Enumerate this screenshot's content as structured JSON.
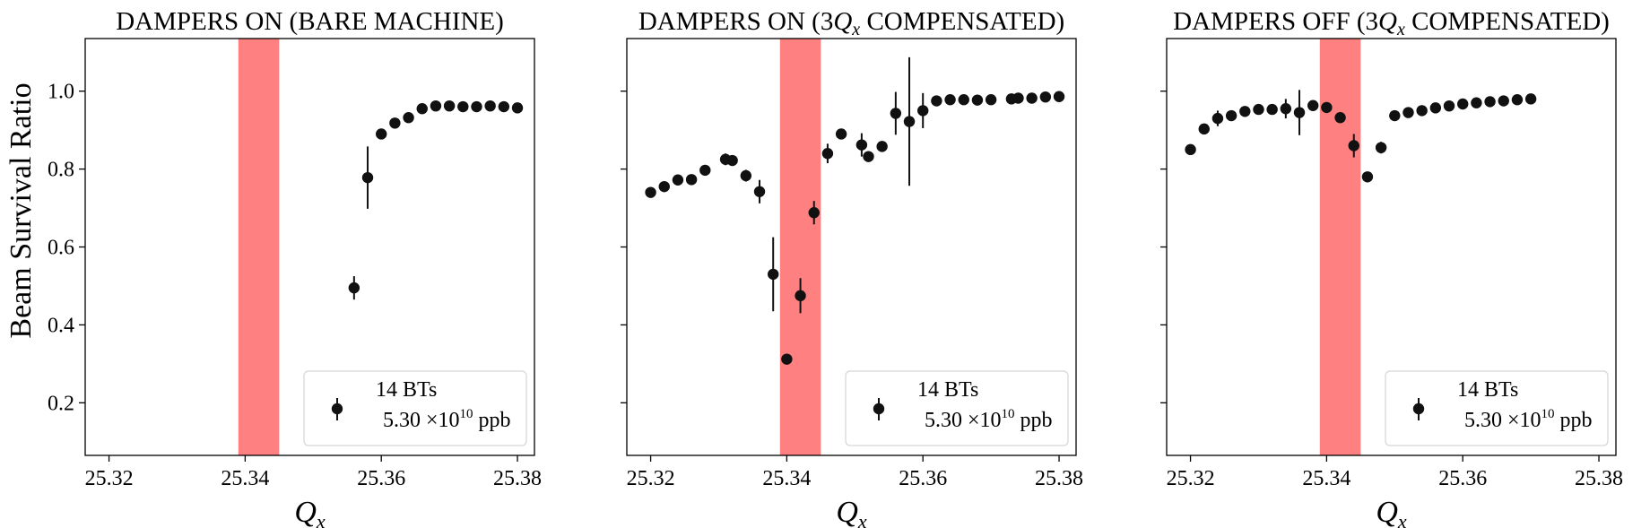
{
  "figure": {
    "ylabel": "Beam Survival Ratio",
    "xlabel_symbol": "Q",
    "xlabel_sub": "x"
  },
  "chart_data": [
    {
      "type": "scatter",
      "title": "DAMPERS ON (BARE MACHINE)",
      "title_parts": [
        {
          "t": "DAMPERS ON (BARE MACHINE)"
        }
      ],
      "xlabel": "Qx",
      "ylabel": "Beam Survival Ratio",
      "xlim": [
        25.3165,
        25.3825
      ],
      "ylim": [
        0.065,
        1.135
      ],
      "xticks": [
        "25.32",
        "25.34",
        "25.36",
        "25.38"
      ],
      "xtick_values": [
        25.32,
        25.34,
        25.36,
        25.38
      ],
      "yticks": [
        "0.2",
        "0.4",
        "0.6",
        "0.8",
        "1.0"
      ],
      "ytick_values": [
        0.2,
        0.4,
        0.6,
        0.8,
        1.0
      ],
      "show_ytick_labels": true,
      "band": {
        "x0": 25.339,
        "x1": 25.345,
        "color": "#ff8080"
      },
      "legend": {
        "line1": "14 BTs",
        "mantissa": "5.30 ×10",
        "exponent": "10",
        "unit": " ppb",
        "location": "lower right"
      },
      "series": [
        {
          "name": "14 BTs 5.30×10^10 ppb",
          "color": "#111111",
          "x": [
            25.356,
            25.358,
            25.36,
            25.362,
            25.364,
            25.366,
            25.368,
            25.37,
            25.372,
            25.374,
            25.376,
            25.378,
            25.38
          ],
          "y": [
            0.495,
            0.778,
            0.89,
            0.918,
            0.932,
            0.955,
            0.962,
            0.962,
            0.96,
            0.96,
            0.962,
            0.96,
            0.957
          ],
          "yerr": [
            0.03,
            0.08,
            0.01,
            0.008,
            0.008,
            0.006,
            0.006,
            0.005,
            0.005,
            0.005,
            0.005,
            0.005,
            0.005
          ]
        }
      ]
    },
    {
      "type": "scatter",
      "title": "DAMPERS ON (3Qx COMPENSATED)",
      "title_parts": [
        {
          "t": "DAMPERS ON (3"
        },
        {
          "t": "Q",
          "i": true
        },
        {
          "t": "x",
          "i": true,
          "sub": true
        },
        {
          "t": " COMPENSATED)"
        }
      ],
      "xlabel": "Qx",
      "ylabel": "",
      "xlim": [
        25.3165,
        25.3825
      ],
      "ylim": [
        0.065,
        1.135
      ],
      "xticks": [
        "25.32",
        "25.34",
        "25.36",
        "25.38"
      ],
      "xtick_values": [
        25.32,
        25.34,
        25.36,
        25.38
      ],
      "yticks": [
        "",
        "",
        "",
        "",
        ""
      ],
      "ytick_values": [
        0.2,
        0.4,
        0.6,
        0.8,
        1.0
      ],
      "show_ytick_labels": false,
      "band": {
        "x0": 25.339,
        "x1": 25.345,
        "color": "#ff8080"
      },
      "legend": {
        "line1": "14 BTs",
        "mantissa": "5.30 ×10",
        "exponent": "10",
        "unit": " ppb",
        "location": "lower right"
      },
      "series": [
        {
          "name": "14 BTs 5.30×10^10 ppb",
          "color": "#111111",
          "x": [
            25.32,
            25.322,
            25.324,
            25.326,
            25.328,
            25.331,
            25.332,
            25.334,
            25.336,
            25.338,
            25.34,
            25.342,
            25.344,
            25.346,
            25.348,
            25.351,
            25.352,
            25.354,
            25.356,
            25.358,
            25.36,
            25.362,
            25.364,
            25.366,
            25.368,
            25.37,
            25.373,
            25.374,
            25.376,
            25.378,
            25.38
          ],
          "y": [
            0.74,
            0.755,
            0.772,
            0.773,
            0.797,
            0.825,
            0.822,
            0.783,
            0.742,
            0.53,
            0.312,
            0.475,
            0.688,
            0.84,
            0.89,
            0.862,
            0.832,
            0.858,
            0.943,
            0.922,
            0.95,
            0.975,
            0.978,
            0.978,
            0.977,
            0.978,
            0.98,
            0.982,
            0.982,
            0.985,
            0.986
          ],
          "yerr": [
            0.005,
            0.006,
            0.006,
            0.006,
            0.01,
            0.015,
            0.012,
            0.015,
            0.03,
            0.095,
            0.008,
            0.045,
            0.03,
            0.025,
            0.008,
            0.03,
            0.008,
            0.008,
            0.055,
            0.165,
            0.045,
            0.008,
            0.005,
            0.005,
            0.005,
            0.005,
            0.005,
            0.005,
            0.005,
            0.005,
            0.005
          ]
        }
      ]
    },
    {
      "type": "scatter",
      "title": "DAMPERS OFF (3Qx COMPENSATED)",
      "title_parts": [
        {
          "t": "DAMPERS OFF (3"
        },
        {
          "t": "Q",
          "i": true
        },
        {
          "t": "x",
          "i": true,
          "sub": true
        },
        {
          "t": " COMPENSATED)"
        }
      ],
      "xlabel": "Qx",
      "ylabel": "",
      "xlim": [
        25.3165,
        25.3825
      ],
      "ylim": [
        0.065,
        1.135
      ],
      "xticks": [
        "25.32",
        "25.34",
        "25.36",
        "25.38"
      ],
      "xtick_values": [
        25.32,
        25.34,
        25.36,
        25.38
      ],
      "yticks": [
        "",
        "",
        "",
        "",
        ""
      ],
      "ytick_values": [
        0.2,
        0.4,
        0.6,
        0.8,
        1.0
      ],
      "show_ytick_labels": false,
      "band": {
        "x0": 25.339,
        "x1": 25.345,
        "color": "#ff8080"
      },
      "legend": {
        "line1": "14 BTs",
        "mantissa": "5.30 ×10",
        "exponent": "10",
        "unit": " ppb",
        "location": "lower right"
      },
      "series": [
        {
          "name": "14 BTs 5.30×10^10 ppb",
          "color": "#111111",
          "x": [
            25.32,
            25.322,
            25.324,
            25.326,
            25.328,
            25.33,
            25.332,
            25.334,
            25.336,
            25.338,
            25.34,
            25.342,
            25.344,
            25.346,
            25.348,
            25.35,
            25.352,
            25.354,
            25.356,
            25.358,
            25.36,
            25.362,
            25.364,
            25.366,
            25.368,
            25.37
          ],
          "y": [
            0.85,
            0.903,
            0.93,
            0.937,
            0.948,
            0.953,
            0.953,
            0.955,
            0.945,
            0.963,
            0.958,
            0.932,
            0.86,
            0.78,
            0.855,
            0.937,
            0.945,
            0.95,
            0.957,
            0.962,
            0.967,
            0.97,
            0.973,
            0.975,
            0.978,
            0.98
          ],
          "yerr": [
            0.01,
            0.008,
            0.02,
            0.01,
            0.008,
            0.008,
            0.01,
            0.025,
            0.058,
            0.008,
            0.008,
            0.008,
            0.03,
            0.01,
            0.015,
            0.008,
            0.006,
            0.006,
            0.005,
            0.005,
            0.005,
            0.005,
            0.005,
            0.005,
            0.005,
            0.005
          ]
        }
      ]
    }
  ]
}
